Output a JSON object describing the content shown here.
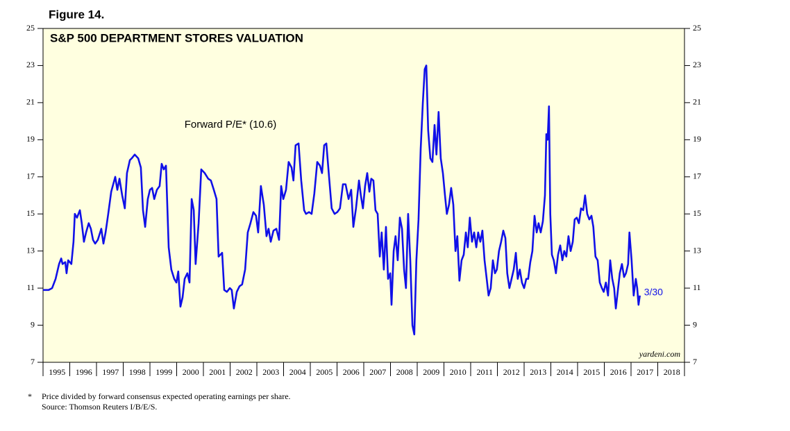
{
  "chart_data": {
    "type": "line",
    "figure_label": "Figure 14.",
    "title": "S&P 500 DEPARTMENT STORES VALUATION",
    "end_label": "3/30",
    "watermark": "yardeni.com",
    "footnote_marker": "*",
    "footnote": "Price divided by forward consensus expected operating earnings per share.",
    "source": "Source: Thomson Reuters I/B/E/S.",
    "background": "#ffffe0",
    "xlim": [
      1995,
      2019
    ],
    "xticks": [
      1995,
      1996,
      1997,
      1998,
      1999,
      2000,
      2001,
      2002,
      2003,
      2004,
      2005,
      2006,
      2007,
      2008,
      2009,
      2010,
      2011,
      2012,
      2013,
      2014,
      2015,
      2016,
      2017,
      2018,
      2019
    ],
    "year_labels": [
      "1995",
      "1996",
      "1997",
      "1998",
      "1999",
      "2000",
      "2001",
      "2002",
      "2003",
      "2004",
      "2005",
      "2006",
      "2007",
      "2008",
      "2009",
      "2010",
      "2011",
      "2012",
      "2013",
      "2014",
      "2015",
      "2016",
      "2017",
      "2018"
    ],
    "ylim": [
      7,
      25
    ],
    "yticks": [
      7,
      9,
      11,
      13,
      15,
      17,
      19,
      21,
      23,
      25
    ],
    "series": [
      {
        "name": "Forward P/E* (10.6)",
        "color": "#1010e8",
        "x": [
          1995.0,
          1995.21,
          1995.34,
          1995.47,
          1995.6,
          1995.68,
          1995.73,
          1995.83,
          1995.88,
          1995.94,
          1996.06,
          1996.14,
          1996.19,
          1996.27,
          1996.38,
          1996.45,
          1996.53,
          1996.61,
          1996.71,
          1996.79,
          1996.87,
          1996.95,
          1997.05,
          1997.18,
          1997.26,
          1997.34,
          1997.44,
          1997.55,
          1997.7,
          1997.78,
          1997.86,
          1997.96,
          1998.06,
          1998.14,
          1998.25,
          1998.32,
          1998.43,
          1998.56,
          1998.66,
          1998.74,
          1998.82,
          1998.92,
          1999.0,
          1999.08,
          1999.16,
          1999.26,
          1999.36,
          1999.44,
          1999.52,
          1999.6,
          1999.7,
          1999.8,
          1999.91,
          1999.99,
          2000.06,
          2000.14,
          2000.22,
          2000.3,
          2000.4,
          2000.48,
          2000.56,
          2000.64,
          2000.71,
          2000.82,
          2000.92,
          2001.05,
          2001.18,
          2001.28,
          2001.39,
          2001.49,
          2001.57,
          2001.7,
          2001.78,
          2001.88,
          2001.99,
          2002.06,
          2002.14,
          2002.25,
          2002.35,
          2002.45,
          2002.56,
          2002.66,
          2002.76,
          2002.87,
          2002.97,
          2003.05,
          2003.15,
          2003.26,
          2003.36,
          2003.44,
          2003.52,
          2003.62,
          2003.73,
          2003.83,
          2003.91,
          2003.99,
          2004.09,
          2004.19,
          2004.3,
          2004.37,
          2004.45,
          2004.56,
          2004.66,
          2004.77,
          2004.84,
          2004.95,
          2005.05,
          2005.15,
          2005.26,
          2005.36,
          2005.44,
          2005.52,
          2005.6,
          2005.7,
          2005.8,
          2005.91,
          2006.01,
          2006.11,
          2006.22,
          2006.32,
          2006.43,
          2006.53,
          2006.61,
          2006.71,
          2006.82,
          2006.89,
          2006.97,
          2007.05,
          2007.13,
          2007.21,
          2007.28,
          2007.36,
          2007.44,
          2007.52,
          2007.6,
          2007.67,
          2007.75,
          2007.83,
          2007.91,
          2007.99,
          2008.04,
          2008.12,
          2008.19,
          2008.27,
          2008.35,
          2008.43,
          2008.51,
          2008.58,
          2008.66,
          2008.74,
          2008.82,
          2008.89,
          2008.97,
          2009.05,
          2009.13,
          2009.21,
          2009.28,
          2009.34,
          2009.41,
          2009.49,
          2009.57,
          2009.65,
          2009.72,
          2009.8,
          2009.88,
          2009.96,
          2010.04,
          2010.11,
          2010.19,
          2010.27,
          2010.35,
          2010.43,
          2010.5,
          2010.58,
          2010.66,
          2010.74,
          2010.82,
          2010.89,
          2010.97,
          2011.05,
          2011.13,
          2011.21,
          2011.28,
          2011.36,
          2011.44,
          2011.52,
          2011.6,
          2011.67,
          2011.75,
          2011.83,
          2011.91,
          2011.98,
          2012.06,
          2012.14,
          2012.22,
          2012.3,
          2012.37,
          2012.45,
          2012.53,
          2012.61,
          2012.69,
          2012.76,
          2012.84,
          2012.92,
          2013.0,
          2013.08,
          2013.15,
          2013.23,
          2013.31,
          2013.39,
          2013.47,
          2013.54,
          2013.62,
          2013.7,
          2013.78,
          2013.83,
          2013.88,
          2013.93,
          2013.98,
          2014.04,
          2014.11,
          2014.19,
          2014.27,
          2014.35,
          2014.43,
          2014.5,
          2014.58,
          2014.66,
          2014.74,
          2014.82,
          2014.89,
          2014.97,
          2015.05,
          2015.13,
          2015.21,
          2015.28,
          2015.36,
          2015.44,
          2015.52,
          2015.59,
          2015.67,
          2015.75,
          2015.83,
          2015.91,
          2015.98,
          2016.06,
          2016.14,
          2016.22,
          2016.3,
          2016.37,
          2016.43,
          2016.5,
          2016.58,
          2016.66,
          2016.74,
          2016.81,
          2016.89,
          2016.94,
          2017.02,
          2017.1,
          2017.18,
          2017.23,
          2017.28,
          2017.33
        ],
        "values": [
          10.9,
          10.9,
          11.0,
          11.5,
          12.3,
          12.6,
          12.3,
          12.4,
          11.8,
          12.5,
          12.3,
          13.5,
          15.0,
          14.8,
          15.2,
          14.5,
          13.5,
          14.0,
          14.5,
          14.2,
          13.6,
          13.4,
          13.6,
          14.2,
          13.4,
          14.0,
          15.0,
          16.2,
          17.0,
          16.3,
          16.9,
          16.0,
          15.3,
          17.2,
          17.9,
          18.0,
          18.2,
          18.0,
          17.5,
          15.2,
          14.3,
          15.8,
          16.3,
          16.4,
          15.8,
          16.3,
          16.5,
          17.7,
          17.4,
          17.6,
          13.2,
          12.0,
          11.5,
          11.3,
          11.9,
          10.0,
          10.5,
          11.5,
          11.8,
          11.3,
          15.8,
          15.2,
          12.3,
          14.5,
          17.4,
          17.2,
          16.9,
          16.8,
          16.3,
          15.8,
          12.7,
          12.9,
          10.9,
          10.8,
          11.0,
          10.9,
          9.9,
          10.8,
          11.1,
          11.2,
          12.0,
          14.0,
          14.5,
          15.1,
          14.9,
          14.0,
          16.5,
          15.5,
          13.8,
          14.2,
          13.5,
          14.1,
          14.2,
          13.6,
          16.5,
          15.8,
          16.3,
          17.8,
          17.5,
          16.8,
          18.7,
          18.8,
          16.8,
          15.2,
          15.0,
          15.1,
          15.0,
          16.1,
          17.8,
          17.6,
          17.2,
          18.7,
          18.8,
          17.0,
          15.3,
          15.0,
          15.1,
          15.3,
          16.6,
          16.6,
          15.8,
          16.3,
          14.3,
          15.3,
          16.8,
          16.0,
          15.3,
          16.5,
          17.2,
          16.2,
          16.9,
          16.8,
          15.2,
          15.0,
          12.7,
          14.0,
          12.0,
          14.3,
          11.5,
          11.8,
          10.1,
          13.0,
          13.8,
          12.5,
          14.8,
          14.2,
          12.0,
          11.0,
          15.0,
          12.5,
          9.0,
          8.5,
          12.5,
          14.7,
          18.5,
          21.0,
          22.8,
          23.0,
          19.5,
          18.0,
          17.8,
          19.8,
          18.2,
          20.5,
          18.0,
          17.2,
          16.0,
          15.0,
          15.5,
          16.4,
          15.5,
          13.0,
          13.8,
          11.4,
          12.5,
          12.8,
          14.0,
          13.2,
          14.8,
          13.5,
          14.0,
          13.2,
          14.0,
          13.5,
          14.1,
          12.5,
          11.5,
          10.6,
          11.0,
          12.5,
          11.8,
          12.0,
          13.0,
          13.5,
          14.1,
          13.7,
          11.8,
          11.0,
          11.5,
          12.0,
          12.9,
          11.5,
          12.0,
          11.3,
          11.0,
          11.5,
          11.5,
          12.4,
          13.0,
          14.9,
          14.0,
          14.5,
          14.0,
          14.6,
          16.0,
          19.3,
          19.0,
          20.8,
          15.0,
          12.8,
          12.5,
          11.8,
          12.8,
          13.3,
          12.5,
          13.0,
          12.7,
          13.8,
          13.0,
          13.5,
          14.7,
          14.8,
          14.5,
          15.3,
          15.2,
          16.0,
          15.0,
          14.7,
          14.9,
          14.3,
          12.7,
          12.5,
          11.3,
          11.0,
          10.8,
          11.3,
          10.6,
          12.5,
          11.5,
          11.0,
          9.9,
          10.8,
          11.8,
          12.3,
          11.6,
          11.8,
          12.3,
          14.0,
          12.5,
          10.6,
          11.5,
          11.0,
          10.1,
          10.6
        ]
      }
    ]
  }
}
